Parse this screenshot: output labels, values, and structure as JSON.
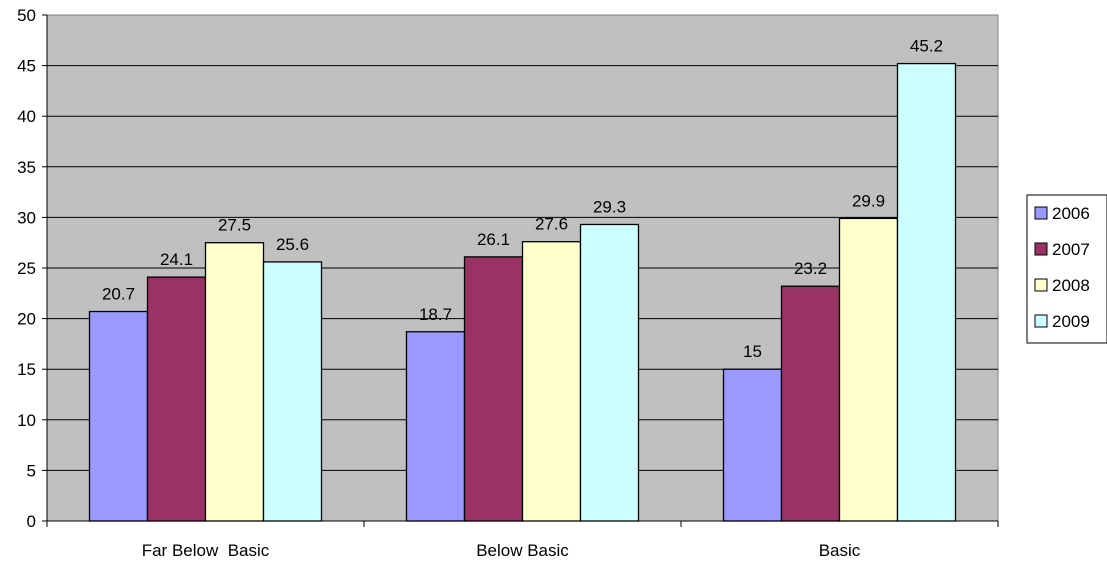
{
  "chart_data": {
    "type": "bar",
    "title": "",
    "xlabel": "",
    "ylabel": "",
    "categories": [
      "Far Below  Basic",
      "Below Basic",
      "Basic"
    ],
    "series": [
      {
        "name": "2006",
        "values": [
          20.7,
          18.7,
          15
        ],
        "color": "#9999ff"
      },
      {
        "name": "2007",
        "values": [
          24.1,
          26.1,
          23.2
        ],
        "color": "#993366"
      },
      {
        "name": "2008",
        "values": [
          27.5,
          27.6,
          29.9
        ],
        "color": "#ffffcc"
      },
      {
        "name": "2009",
        "values": [
          25.6,
          29.3,
          45.2
        ],
        "color": "#ccffff"
      }
    ],
    "ylim": [
      0,
      50
    ],
    "yticks": [
      0,
      5,
      10,
      15,
      20,
      25,
      30,
      35,
      40,
      45,
      50
    ],
    "grid": true,
    "plot_background": "#c0c0c0",
    "legend_position": "right",
    "data_labels": true
  }
}
